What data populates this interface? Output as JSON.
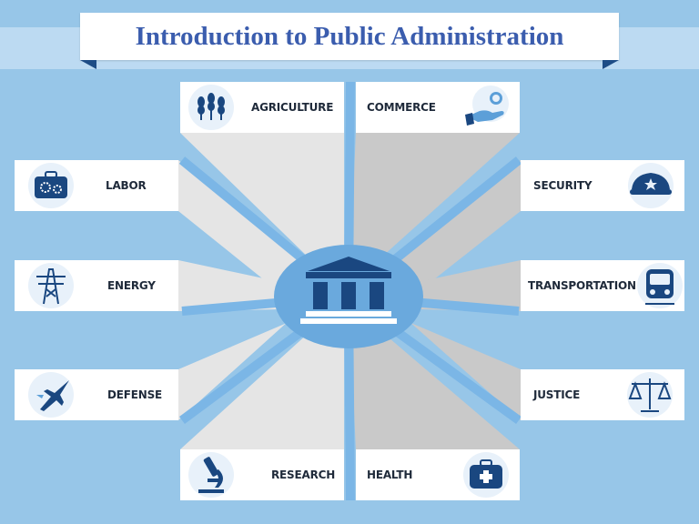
{
  "title": "Introduction to Public Administration",
  "center": {
    "icon": "government-building-icon"
  },
  "sectors": [
    {
      "id": "agriculture",
      "label": "AGRICULTURE",
      "icon": "wheat-icon"
    },
    {
      "id": "commerce",
      "label": "COMMERCE",
      "icon": "hand-coin-icon"
    },
    {
      "id": "labor",
      "label": "LABOR",
      "icon": "toolbox-gears-icon"
    },
    {
      "id": "security",
      "label": "SECURITY",
      "icon": "police-cap-icon"
    },
    {
      "id": "energy",
      "label": "ENERGY",
      "icon": "power-tower-icon"
    },
    {
      "id": "transportation",
      "label": "TRANSPORTATION",
      "icon": "train-icon"
    },
    {
      "id": "defense",
      "label": "DEFENSE",
      "icon": "fighter-jet-icon"
    },
    {
      "id": "justice",
      "label": "JUSTICE",
      "icon": "scales-icon"
    },
    {
      "id": "research",
      "label": "RESEARCH",
      "icon": "microscope-icon"
    },
    {
      "id": "health",
      "label": "HEALTH",
      "icon": "first-aid-kit-icon"
    }
  ],
  "colors": {
    "background": "#97c6e8",
    "band": "#bcdaf2",
    "title_text": "#3b5dae",
    "title_fold": "#1e4d86",
    "ray_light": "#e5e5e5",
    "ray_shadow": "#c9c9c9",
    "hub_fill": "#6aa9dd",
    "icon_dark": "#1a4780",
    "icon_circle": "#e8f1fa",
    "icon_blue": "#5c9fd8"
  }
}
